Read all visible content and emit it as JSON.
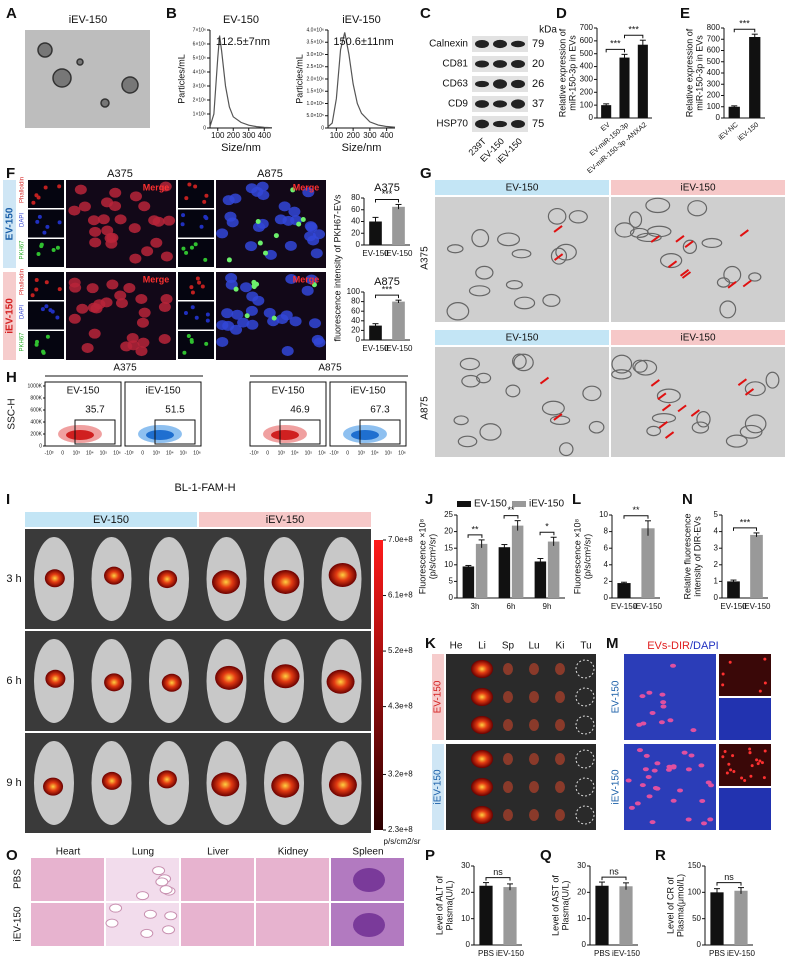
{
  "panel_letters": [
    "A",
    "B",
    "C",
    "D",
    "E",
    "F",
    "G",
    "H",
    "I",
    "J",
    "K",
    "L",
    "M",
    "N",
    "O",
    "P",
    "Q",
    "R"
  ],
  "panel_a": {
    "title": "iEV-150"
  },
  "panel_c": {
    "unit": "kDa",
    "bands": [
      {
        "name": "Calnexin",
        "size": 79
      },
      {
        "name": "CD81",
        "size": 20
      },
      {
        "name": "CD63",
        "size": 26
      },
      {
        "name": "CD9",
        "size": 37
      },
      {
        "name": "HSP70",
        "size": 75
      }
    ],
    "lanes": [
      "239T",
      "EV-150",
      "iEV-150"
    ]
  },
  "panel_f": {
    "columns": [
      "A375",
      "A875"
    ],
    "rows": [
      "EV-150",
      "iEV-150"
    ],
    "merge": "Merge",
    "stains": [
      "Phalloidin",
      "DAPI",
      "PKH67"
    ],
    "ylabel": "fluorescence intensity of PKH67-EVs"
  },
  "panel_g": {
    "columns": [
      "EV-150",
      "iEV-150"
    ],
    "rows": [
      "A375",
      "A875"
    ]
  },
  "panel_h": {
    "groups": [
      "A375",
      "A875"
    ],
    "plots": [
      {
        "name": "EV-150",
        "percent": 35.7
      },
      {
        "name": "iEV-150",
        "percent": 51.5
      },
      {
        "name": "EV-150",
        "percent": 46.9
      },
      {
        "name": "iEV-150",
        "percent": 67.3
      }
    ],
    "ylabel": "SSC-H",
    "xlabel": "BL-1-FAM-H",
    "yticks": [
      0,
      {
        "value": 200000,
        "label": "200K"
      },
      {
        "value": 400000,
        "label": "400K"
      },
      {
        "value": 600000,
        "label": "600K"
      },
      {
        "value": 800000,
        "label": "800K"
      },
      {
        "value": 1000000,
        "label": "1000K"
      }
    ],
    "xticks": [
      {
        "value": -1000,
        "label": "-10³"
      },
      0,
      {
        "value": 1000,
        "label": "10³"
      },
      {
        "value": 10000,
        "label": "10⁴"
      },
      {
        "value": 100000,
        "label": "10⁵"
      },
      {
        "value": 1000000,
        "label": "10⁶"
      }
    ]
  },
  "panel_i": {
    "columns": [
      "EV-150",
      "iEV-150"
    ],
    "rows": [
      "3 h",
      "6 h",
      "9 h"
    ],
    "unit": "p/s/cm2/sr",
    "scale": [
      {
        "value": 700000000,
        "label": "7.0e+8"
      },
      {
        "value": 610000000,
        "label": "6.1e+8"
      },
      {
        "value": 520000000,
        "label": "5.2e+8"
      },
      {
        "value": 430000000,
        "label": "4.3e+8"
      },
      {
        "value": 320000000,
        "label": "3.2e+8"
      },
      {
        "value": 230000000,
        "label": "2.3e+8"
      }
    ]
  },
  "panel_k": {
    "organs": [
      "He",
      "Li",
      "Sp",
      "Lu",
      "Ki",
      "Tu"
    ],
    "rows": [
      "EV-150",
      "iEV-150"
    ]
  },
  "panel_m": {
    "title": [
      "EVs-DIR",
      "/DAPI"
    ],
    "rows": [
      "EV-150",
      "iEV-150"
    ]
  },
  "panel_o": {
    "columns": [
      "Heart",
      "Lung",
      "Liver",
      "Kidney",
      "Spleen"
    ],
    "rows": [
      "PBS",
      "iEV-150"
    ]
  },
  "chart_data": [
    {
      "type": "line",
      "title": "EV-150",
      "annotation": "112.5±7nm",
      "ylabel": "Particles/mL",
      "xlabel": "Size/nm",
      "color": "#555",
      "x": [
        50,
        75,
        100,
        112,
        125,
        150,
        175,
        200,
        250,
        300,
        350,
        400,
        450
      ],
      "values": [
        100000,
        1000000,
        5000000,
        6600000,
        5500000,
        3000000,
        1500000,
        800000,
        400000,
        200000,
        100000,
        50000,
        20000
      ],
      "xlim": [
        50,
        450
      ],
      "xticks": [
        100,
        200,
        300,
        400
      ],
      "ylim": [
        0,
        7000000
      ],
      "yticks": [
        0,
        {
          "value": 1000000,
          "label": "1×10⁶"
        },
        {
          "value": 2000000,
          "label": "2×10⁶"
        },
        {
          "value": 3000000,
          "label": "3×10⁶"
        },
        {
          "value": 4000000,
          "label": "4×10⁶"
        },
        {
          "value": 5000000,
          "label": "5×10⁶"
        },
        {
          "value": 6000000,
          "label": "6×10⁶"
        },
        {
          "value": 7000000,
          "label": "7×10⁶"
        }
      ]
    },
    {
      "type": "line",
      "title": "iEV-150",
      "annotation": "150.6±11nm",
      "ylabel": "Particles/mL",
      "xlabel": "Size/nm",
      "color": "#555",
      "x": [
        50,
        75,
        100,
        125,
        150,
        175,
        200,
        225,
        250,
        300,
        350,
        400,
        450
      ],
      "values": [
        50000,
        200000,
        1200000,
        3200000,
        3900000,
        3000000,
        1800000,
        1000000,
        600000,
        250000,
        120000,
        60000,
        30000
      ],
      "xlim": [
        50,
        450
      ],
      "xticks": [
        100,
        200,
        300,
        400
      ],
      "ylim": [
        0,
        4000000
      ],
      "yticks": [
        0,
        {
          "value": 500000,
          "label": "5.0×10⁵"
        },
        {
          "value": 1000000,
          "label": "1.0×10⁶"
        },
        {
          "value": 1500000,
          "label": "1.5×10⁶"
        },
        {
          "value": 2000000,
          "label": "2.0×10⁶"
        },
        {
          "value": 2500000,
          "label": "2.5×10⁶"
        },
        {
          "value": 3000000,
          "label": "3.0×10⁶"
        },
        {
          "value": 3500000,
          "label": "3.5×10⁶"
        },
        {
          "value": 4000000,
          "label": "4.0×10⁶"
        }
      ]
    },
    {
      "type": "bar",
      "ylabel": [
        "Relative expression of",
        "miR-150-3p in EVs"
      ],
      "categories": [
        "EV",
        "EV-miR-150-3p",
        "EV-miR-150-3p -ANXA2"
      ],
      "values": [
        100,
        470,
        570
      ],
      "errors": [
        10,
        25,
        35
      ],
      "colors": [
        "#111",
        "#111",
        "#111"
      ],
      "ylim": [
        0,
        700
      ],
      "yticks": [
        0,
        100,
        200,
        300,
        400,
        500,
        600,
        700
      ],
      "significance": [
        "***",
        "***"
      ]
    },
    {
      "type": "bar",
      "ylabel": [
        "Relative expression of",
        "miR-150-3p in EVs"
      ],
      "categories": [
        "iEV-NC",
        "iEV-150"
      ],
      "values": [
        100,
        720
      ],
      "errors": [
        8,
        25
      ],
      "colors": [
        "#111",
        "#111"
      ],
      "ylim": [
        0,
        800
      ],
      "yticks": [
        0,
        100,
        200,
        300,
        400,
        500,
        600,
        700,
        800
      ],
      "significance": [
        "***"
      ]
    },
    {
      "type": "bar",
      "title": "A375",
      "categories": [
        "EV-150",
        "iEV-150"
      ],
      "values": [
        40,
        65
      ],
      "errors": [
        7,
        4
      ],
      "colors": [
        "#111",
        "#999"
      ],
      "ylim": [
        0,
        80
      ],
      "yticks": [
        0,
        20,
        40,
        60,
        80
      ],
      "significance": [
        "***"
      ]
    },
    {
      "type": "bar",
      "title": "A875",
      "categories": [
        "EV-150",
        "iEV-150"
      ],
      "values": [
        30,
        80
      ],
      "errors": [
        4,
        3
      ],
      "colors": [
        "#111",
        "#999"
      ],
      "ylim": [
        0,
        100
      ],
      "yticks": [
        0,
        20,
        40,
        60,
        80,
        100
      ],
      "significance": [
        "***"
      ]
    },
    {
      "type": "bar",
      "ylabel": [
        "Fluorescence ×10⁸",
        "(p/s/cm²/sr)"
      ],
      "categories": [
        "3h",
        "6h",
        "9h"
      ],
      "series": [
        {
          "name": "EV-150",
          "color": "#111",
          "values": [
            9.5,
            15.3,
            11
          ],
          "errors": [
            0.3,
            0.8,
            0.9
          ]
        },
        {
          "name": "iEV-150",
          "color": "#999",
          "values": [
            16.3,
            21.8,
            17
          ],
          "errors": [
            1.2,
            1.5,
            1.3
          ]
        }
      ],
      "ylim": [
        0,
        25
      ],
      "yticks": [
        0,
        5,
        10,
        15,
        20,
        25
      ],
      "significance": [
        "**",
        "**",
        "*"
      ]
    },
    {
      "type": "bar",
      "ylabel": [
        "Fluorescence ×10⁸",
        "(p/s/cm²/sr)"
      ],
      "categories": [
        "EV-150",
        "iEV-150"
      ],
      "values": [
        1.8,
        8.4
      ],
      "errors": [
        0.1,
        0.9
      ],
      "colors": [
        "#111",
        "#999"
      ],
      "ylim": [
        0,
        10
      ],
      "yticks": [
        0,
        2,
        4,
        6,
        8,
        10
      ],
      "significance": [
        "**"
      ]
    },
    {
      "type": "bar",
      "ylabel": [
        "Relative fluorescence",
        "intensity of DIR-EVs"
      ],
      "categories": [
        "EV-150",
        "iEV-150"
      ],
      "values": [
        1.0,
        3.8
      ],
      "errors": [
        0.08,
        0.12
      ],
      "colors": [
        "#111",
        "#999"
      ],
      "ylim": [
        0,
        5
      ],
      "yticks": [
        0,
        1,
        2,
        3,
        4,
        5
      ],
      "significance": [
        "***"
      ]
    },
    {
      "type": "bar",
      "ylabel": [
        "Level of ALT of",
        "Plasma(U/L)"
      ],
      "categories": [
        "PBS",
        "iEV-150"
      ],
      "values": [
        22.5,
        22
      ],
      "errors": [
        1.2,
        1.2
      ],
      "colors": [
        "#111",
        "#999"
      ],
      "ylim": [
        0,
        30
      ],
      "yticks": [
        0,
        10,
        20,
        30
      ],
      "significance": [
        "ns"
      ]
    },
    {
      "type": "bar",
      "ylabel": [
        "Level of AST of",
        "Plasma(U/L)"
      ],
      "categories": [
        "PBS",
        "iEV-150"
      ],
      "values": [
        22.5,
        22.3
      ],
      "errors": [
        1.4,
        1.3
      ],
      "colors": [
        "#111",
        "#999"
      ],
      "ylim": [
        0,
        30
      ],
      "yticks": [
        0,
        10,
        20,
        30
      ],
      "significance": [
        "ns"
      ]
    },
    {
      "type": "bar",
      "ylabel": [
        "Level of CR of",
        "Plasma(μmol/L)"
      ],
      "categories": [
        "PBS",
        "iEV-150"
      ],
      "values": [
        100,
        103
      ],
      "errors": [
        7,
        6
      ],
      "colors": [
        "#111",
        "#999"
      ],
      "ylim": [
        0,
        150
      ],
      "yticks": [
        0,
        50,
        100,
        150
      ],
      "significance": [
        "ns"
      ]
    }
  ]
}
